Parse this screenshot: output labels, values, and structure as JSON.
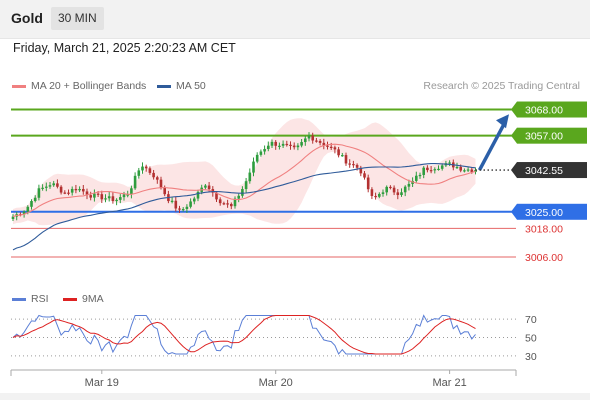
{
  "header": {
    "instrument": "Gold",
    "timeframe": "30 MIN"
  },
  "timestamp": "Friday, March 21, 2025 2:20:23 AM CET",
  "legend": {
    "ma20_label": "MA 20 + Bollinger Bands",
    "ma50_label": "MA 50",
    "ma20_color": "#f08080",
    "ma50_color": "#2f5b9a",
    "credit": "Research © 2025 Trading Central"
  },
  "chart_data": {
    "type": "candlestick",
    "price_range": [
      2998,
      3072
    ],
    "x_labels": [
      {
        "label": "Mar 19",
        "index": 24
      },
      {
        "label": "Mar 20",
        "index": 71
      },
      {
        "label": "Mar 21",
        "index": 118
      }
    ],
    "current_price": {
      "label": "3042.55",
      "value": 3042.55
    },
    "levels": [
      {
        "label": "3068.00",
        "value": 3068.0,
        "type": "resistance",
        "color": "#5aa71e"
      },
      {
        "label": "3057.00",
        "value": 3057.0,
        "type": "resistance",
        "color": "#5aa71e"
      },
      {
        "label": "3025.00",
        "value": 3025.0,
        "type": "pivot",
        "color": "#2f6fe6"
      },
      {
        "label": "3018.00",
        "value": 3018.0,
        "type": "support",
        "color": "#dd3333"
      },
      {
        "label": "3006.00",
        "value": 3006.0,
        "type": "support",
        "color": "#dd3333"
      }
    ],
    "forecast_arrow": {
      "from_value": 3042.55,
      "to_value": 3066.0
    },
    "candle_key_closes": [
      3023,
      3026,
      3034,
      3037,
      3033,
      3035,
      3032,
      3031,
      3030,
      3033,
      3045,
      3040,
      3031,
      3025,
      3030,
      3037,
      3030,
      3027,
      3036,
      3049,
      3054,
      3053,
      3051,
      3057,
      3054,
      3051,
      3046,
      3043,
      3030,
      3035,
      3033,
      3037,
      3043,
      3044,
      3045,
      3043,
      3042.55
    ],
    "series": [
      {
        "name": "MA 20 + Bollinger Bands",
        "color": "#f08080"
      },
      {
        "name": "MA 50",
        "color": "#2f5b9a"
      }
    ],
    "rsi": {
      "range": [
        0,
        100
      ],
      "levels": [
        30,
        50,
        70
      ],
      "series": [
        {
          "name": "RSI",
          "color": "#5b7fd6"
        },
        {
          "name": "9MA",
          "color": "#dd2222"
        }
      ]
    }
  },
  "rsi_legend": {
    "rsi_label": "RSI",
    "ma_label": "9MA",
    "rsi_color": "#5b7fd6",
    "ma_color": "#dd2222"
  },
  "rsi_levels": [
    "70",
    "50",
    "30"
  ]
}
